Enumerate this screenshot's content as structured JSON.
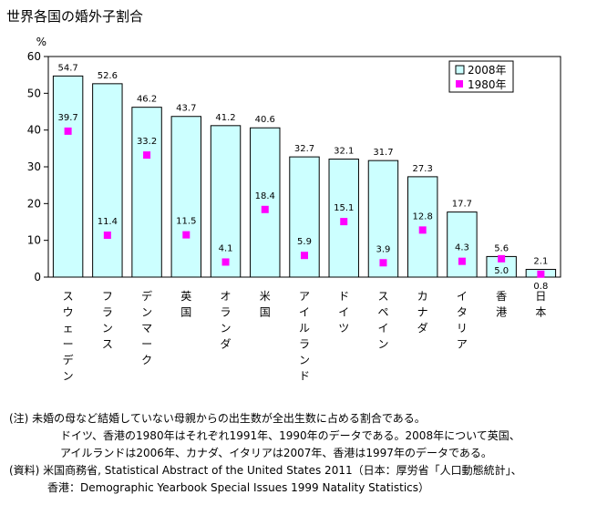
{
  "chart_data": {
    "type": "bar",
    "title": "世界各国の婚外子割合",
    "ylabel": "%",
    "ylim": [
      0,
      60
    ],
    "yticks": [
      0,
      10,
      20,
      30,
      40,
      50,
      60
    ],
    "categories": [
      "スウェーデン",
      "フランス",
      "デンマーク",
      "英国",
      "オランダ",
      "米国",
      "アイルランド",
      "ドイツ",
      "スペイン",
      "カナダ",
      "イタリア",
      "香港",
      "日本"
    ],
    "series": [
      {
        "name": "2008年",
        "kind": "bar",
        "color": "#ccffff",
        "values": [
          54.7,
          52.6,
          46.2,
          43.7,
          41.2,
          40.6,
          32.7,
          32.1,
          31.7,
          27.3,
          17.7,
          5.6,
          2.1
        ]
      },
      {
        "name": "1980年",
        "kind": "marker",
        "color": "#ff00ff",
        "values": [
          39.7,
          11.4,
          33.2,
          11.5,
          4.1,
          18.4,
          5.9,
          15.1,
          3.9,
          12.8,
          4.3,
          5.0,
          0.8
        ]
      }
    ],
    "legend_position": "top-right",
    "grid": false
  },
  "notes": [
    "(注) 未婚の母など結婚していない母親からの出生数が全出生数に占める割合である。",
    "ドイツ、香港の1980年はそれぞれ1991年、1990年のデータである。2008年について英国、",
    "アイルランドは2006年、カナダ、イタリアは2007年、香港は1997年のデータである。",
    "(資料) 米国商務省, Statistical Abstract of the United States 2011（日本：厚労省「人口動態統計」、",
    "香港：Demographic Yearbook Special Issues 1999 Natality Statistics）"
  ]
}
